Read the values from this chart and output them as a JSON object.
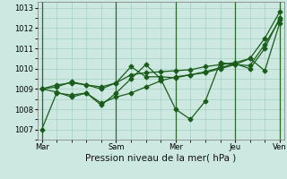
{
  "bg_color": "#cce8e0",
  "grid_color": "#99ccbb",
  "line_color": "#1a5c1a",
  "marker": "D",
  "markersize": 2.5,
  "linewidth": 0.9,
  "xlabel": "Pression niveau de la mer( hPa )",
  "ylim": [
    1006.5,
    1013.3
  ],
  "yticks": [
    1007,
    1008,
    1009,
    1010,
    1011,
    1012,
    1013
  ],
  "xtick_labels": [
    "Mar",
    "Sam",
    "Mer",
    "Jeu",
    "Ven"
  ],
  "xtick_positions": [
    0,
    5,
    9,
    13,
    16
  ],
  "vline_positions": [
    0,
    5,
    9,
    13,
    16
  ],
  "xlim": [
    -0.3,
    16.3
  ],
  "series": [
    [
      1007.0,
      1008.8,
      1008.7,
      1008.8,
      1008.3,
      1008.6,
      1008.8,
      1009.1,
      1009.4,
      1009.6,
      1009.7,
      1009.8,
      1010.0,
      1010.2,
      1010.5,
      1009.9,
      1012.25
    ],
    [
      1009.0,
      1008.85,
      1008.6,
      1008.8,
      1008.2,
      1008.8,
      1009.5,
      1010.2,
      1009.5,
      1008.0,
      1007.5,
      1008.4,
      1010.3,
      1010.2,
      1010.15,
      1011.2,
      1012.4
    ],
    [
      1009.0,
      1009.1,
      1009.35,
      1009.2,
      1009.0,
      1009.3,
      1010.1,
      1009.6,
      1009.6,
      1009.55,
      1009.7,
      1009.85,
      1010.05,
      1010.25,
      1010.0,
      1011.0,
      1012.5
    ],
    [
      1009.0,
      1009.2,
      1009.3,
      1009.2,
      1009.1,
      1009.3,
      1009.7,
      1009.8,
      1009.85,
      1009.9,
      1009.95,
      1010.1,
      1010.2,
      1010.3,
      1010.5,
      1011.5,
      1012.8
    ]
  ],
  "tick_fontsize": 6.0,
  "xlabel_fontsize": 7.5
}
